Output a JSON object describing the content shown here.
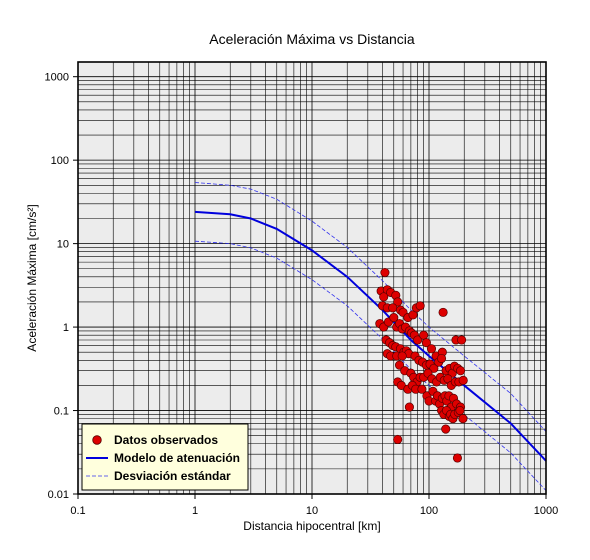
{
  "chart_data": {
    "type": "scatter",
    "title": "Aceleración Máxima vs Distancia",
    "xlabel": "Distancia hipocentral [km]",
    "ylabel": "Aceleración Máxima [cm/s²]",
    "xscale": "log",
    "yscale": "log",
    "xlim": [
      0.1,
      1000
    ],
    "ylim": [
      0.01,
      1500
    ],
    "xticks": [
      {
        "value": 0.1,
        "label": "0.1"
      },
      {
        "value": 1,
        "label": "1"
      },
      {
        "value": 10,
        "label": "10"
      },
      {
        "value": 100,
        "label": "100"
      },
      {
        "value": 1000,
        "label": "1000"
      }
    ],
    "yticks": [
      {
        "value": 0.01,
        "label": "0.01"
      },
      {
        "value": 0.1,
        "label": "0.1"
      },
      {
        "value": 1,
        "label": "1"
      },
      {
        "value": 10,
        "label": "10"
      },
      {
        "value": 100,
        "label": "100"
      },
      {
        "value": 1000,
        "label": "1000"
      }
    ],
    "grid": true,
    "legend_position": "bottom-left",
    "colors": {
      "plot_background": "#ececec",
      "grid": "#000000",
      "points_fill": "#dd0000",
      "points_edge": "#550000",
      "model_line": "#0000dd",
      "std_line": "#3333ee",
      "legend_background": "#ffffdd"
    },
    "series": [
      {
        "name": "Datos observados",
        "kind": "points",
        "points": [
          [
            42,
            4.5
          ],
          [
            39,
            2.7
          ],
          [
            44,
            2.8
          ],
          [
            41,
            2.3
          ],
          [
            47,
            2.6
          ],
          [
            52,
            2.4
          ],
          [
            54,
            2.0
          ],
          [
            40,
            1.8
          ],
          [
            44,
            1.7
          ],
          [
            49,
            1.7
          ],
          [
            57,
            1.6
          ],
          [
            60,
            1.5
          ],
          [
            66,
            1.3
          ],
          [
            73,
            1.4
          ],
          [
            78,
            1.7
          ],
          [
            84,
            1.8
          ],
          [
            132,
            1.5
          ],
          [
            38,
            1.1
          ],
          [
            41,
            1.0
          ],
          [
            45,
            1.15
          ],
          [
            50,
            1.3
          ],
          [
            53,
            1.0
          ],
          [
            56,
            1.1
          ],
          [
            59,
            0.95
          ],
          [
            63,
            1.0
          ],
          [
            68,
            0.9
          ],
          [
            71,
            0.85
          ],
          [
            75,
            0.8
          ],
          [
            80,
            0.7
          ],
          [
            90,
            0.8
          ],
          [
            95,
            0.65
          ],
          [
            105,
            0.55
          ],
          [
            115,
            0.45
          ],
          [
            130,
            0.5
          ],
          [
            170,
            0.7
          ],
          [
            190,
            0.7
          ],
          [
            43,
            0.7
          ],
          [
            46,
            0.65
          ],
          [
            49,
            0.6
          ],
          [
            52,
            0.58
          ],
          [
            57,
            0.55
          ],
          [
            61,
            0.5
          ],
          [
            64,
            0.52
          ],
          [
            67,
            0.48
          ],
          [
            44,
            0.48
          ],
          [
            47,
            0.45
          ],
          [
            53,
            0.45
          ],
          [
            59,
            0.45
          ],
          [
            76,
            0.45
          ],
          [
            82,
            0.4
          ],
          [
            88,
            0.38
          ],
          [
            95,
            0.35
          ],
          [
            102,
            0.36
          ],
          [
            110,
            0.32
          ],
          [
            121,
            0.38
          ],
          [
            128,
            0.42
          ],
          [
            140,
            0.3
          ],
          [
            150,
            0.32
          ],
          [
            158,
            0.28
          ],
          [
            165,
            0.34
          ],
          [
            176,
            0.32
          ],
          [
            186,
            0.3
          ],
          [
            56,
            0.35
          ],
          [
            62,
            0.3
          ],
          [
            70,
            0.28
          ],
          [
            74,
            0.25
          ],
          [
            79,
            0.22
          ],
          [
            84,
            0.25
          ],
          [
            90,
            0.25
          ],
          [
            98,
            0.28
          ],
          [
            106,
            0.24
          ],
          [
            116,
            0.22
          ],
          [
            125,
            0.25
          ],
          [
            135,
            0.23
          ],
          [
            145,
            0.24
          ],
          [
            155,
            0.2
          ],
          [
            168,
            0.22
          ],
          [
            180,
            0.22
          ],
          [
            196,
            0.23
          ],
          [
            54,
            0.22
          ],
          [
            58,
            0.2
          ],
          [
            66,
            0.18
          ],
          [
            72,
            0.2
          ],
          [
            77,
            0.18
          ],
          [
            87,
            0.18
          ],
          [
            96,
            0.15
          ],
          [
            100,
            0.13
          ],
          [
            108,
            0.17
          ],
          [
            114,
            0.13
          ],
          [
            118,
            0.15
          ],
          [
            123,
            0.12
          ],
          [
            130,
            0.14
          ],
          [
            137,
            0.15
          ],
          [
            142,
            0.13
          ],
          [
            148,
            0.15
          ],
          [
            155,
            0.11
          ],
          [
            162,
            0.14
          ],
          [
            172,
            0.12
          ],
          [
            186,
            0.11
          ],
          [
            68,
            0.11
          ],
          [
            128,
            0.1
          ],
          [
            134,
            0.09
          ],
          [
            141,
            0.1
          ],
          [
            149,
            0.085
          ],
          [
            153,
            0.09
          ],
          [
            160,
            0.08
          ],
          [
            166,
            0.09
          ],
          [
            178,
            0.095
          ],
          [
            184,
            0.1
          ],
          [
            195,
            0.08
          ],
          [
            139,
            0.06
          ],
          [
            54,
            0.045
          ],
          [
            175,
            0.027
          ]
        ]
      },
      {
        "name": "Modelo de atenuación",
        "kind": "line",
        "points": [
          [
            1,
            24
          ],
          [
            2,
            22.5
          ],
          [
            3,
            20
          ],
          [
            5,
            15
          ],
          [
            10,
            8.3
          ],
          [
            20,
            4.0
          ],
          [
            40,
            1.6
          ],
          [
            70,
            0.7
          ],
          [
            100,
            0.45
          ],
          [
            200,
            0.2
          ],
          [
            500,
            0.07
          ],
          [
            1000,
            0.025
          ]
        ]
      },
      {
        "name": "Desviación estándar",
        "kind": "band",
        "upper": [
          [
            1,
            54
          ],
          [
            2,
            50
          ],
          [
            3,
            45
          ],
          [
            5,
            34
          ],
          [
            10,
            18.6
          ],
          [
            20,
            9.0
          ],
          [
            40,
            3.6
          ],
          [
            70,
            1.6
          ],
          [
            100,
            1.0
          ],
          [
            200,
            0.45
          ],
          [
            500,
            0.16
          ],
          [
            1000,
            0.056
          ]
        ],
        "lower": [
          [
            1,
            10.7
          ],
          [
            2,
            10.0
          ],
          [
            3,
            8.9
          ],
          [
            5,
            6.7
          ],
          [
            10,
            3.7
          ],
          [
            20,
            1.8
          ],
          [
            40,
            0.72
          ],
          [
            70,
            0.31
          ],
          [
            100,
            0.2
          ],
          [
            200,
            0.089
          ],
          [
            500,
            0.031
          ],
          [
            1000,
            0.011
          ]
        ]
      }
    ]
  }
}
